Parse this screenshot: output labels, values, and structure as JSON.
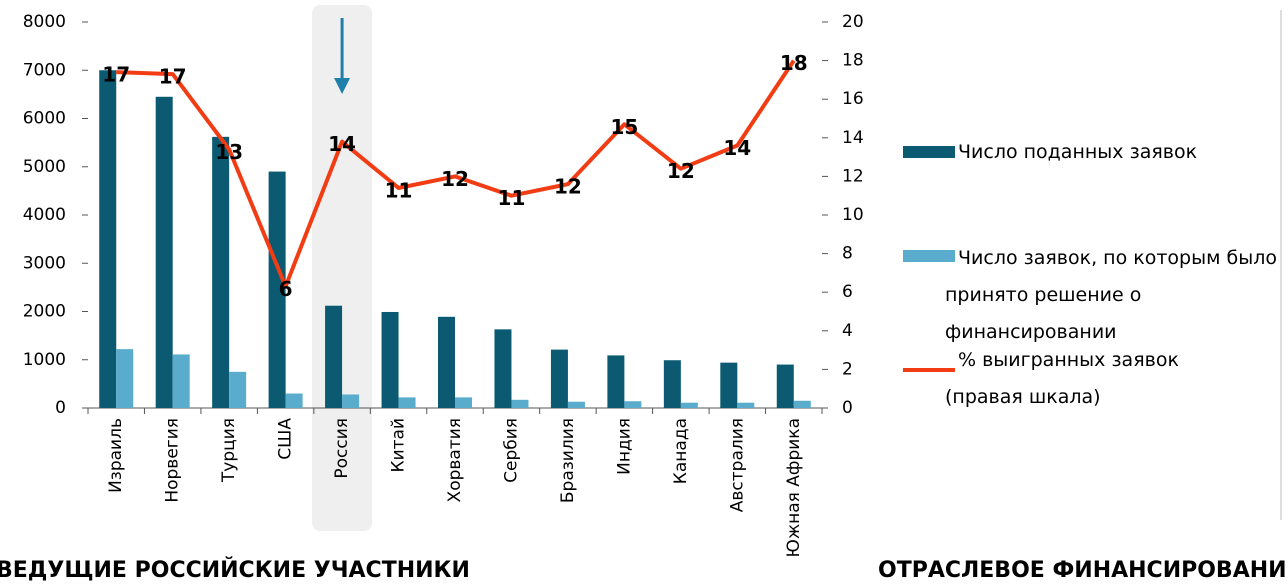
{
  "chart_data": {
    "type": "bar_line",
    "categories": [
      "Израиль",
      "Норвегия",
      "Турция",
      "США",
      "Россия",
      "Китай",
      "Хорватия",
      "Сербия",
      "Бразилия",
      "Индия",
      "Канада",
      "Австралия",
      "Южная Африка"
    ],
    "series": [
      {
        "name": "Число поданных заявок",
        "color": "#0b5a72",
        "type": "bar",
        "values": [
          7000,
          6450,
          5620,
          4900,
          2120,
          1990,
          1890,
          1630,
          1210,
          1090,
          990,
          940,
          900
        ]
      },
      {
        "name": "Число заявок, по которым было принято решение о финансировании",
        "color": "#5aaccc",
        "type": "bar",
        "values": [
          1220,
          1110,
          750,
          300,
          280,
          220,
          220,
          170,
          130,
          140,
          110,
          110,
          150
        ]
      },
      {
        "name": "% выигранных заявок (правая шкала)",
        "color": "#f23c14",
        "type": "line",
        "axis": "y2",
        "values": [
          17.4,
          17.3,
          13.4,
          6.3,
          13.8,
          11.4,
          12.0,
          11.0,
          11.6,
          14.7,
          12.4,
          13.6,
          18.0
        ],
        "value_labels": [
          "17",
          "17",
          "13",
          "6",
          "14",
          "11",
          "12",
          "11",
          "12",
          "15",
          "12",
          "14",
          "18"
        ]
      }
    ],
    "ylim": [
      0,
      8000
    ],
    "yticks": [
      0,
      1000,
      2000,
      3000,
      4000,
      5000,
      6000,
      7000,
      8000
    ],
    "y2lim": [
      0,
      20
    ],
    "y2ticks": [
      0,
      2,
      4,
      6,
      8,
      10,
      12,
      14,
      16,
      18,
      20
    ],
    "legend": "right",
    "highlight": "Россия",
    "annotations": [
      "ВЕДУЩИЕ РОССИЙСКИЕ УЧАСТНИКИ",
      "ОТРАСЛЕВОЕ ФИНАНСИРОВАНИЕ"
    ]
  }
}
